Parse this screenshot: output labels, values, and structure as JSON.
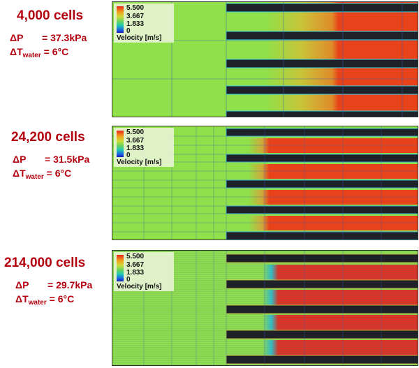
{
  "cases": [
    {
      "title": "4,000 cells",
      "dp_label": "ΔP",
      "dp_value": "= 37.3kPa",
      "dt_label": "ΔT",
      "dt_sub": "water",
      "dt_value": "= 6°C"
    },
    {
      "title": "24,200 cells",
      "dp_label": "ΔP",
      "dp_value": "= 31.5kPa",
      "dt_label": "ΔT",
      "dt_sub": "water",
      "dt_value": "= 6°C"
    },
    {
      "title": "214,000 cells",
      "dp_label": "ΔP",
      "dp_value": "= 29.7kPa",
      "dt_label": "ΔT",
      "dt_sub": "water",
      "dt_value": "= 6°C"
    }
  ],
  "legend": {
    "ticks": [
      "5.500",
      "3.667",
      "1.833",
      "0"
    ],
    "title": "Velocity [m/s]"
  },
  "colors": {
    "text_accent": "#b3000f",
    "fluid_slow": "#8fe04a",
    "fluid_fast": "#e8421a",
    "solid": "#1e2228"
  }
}
